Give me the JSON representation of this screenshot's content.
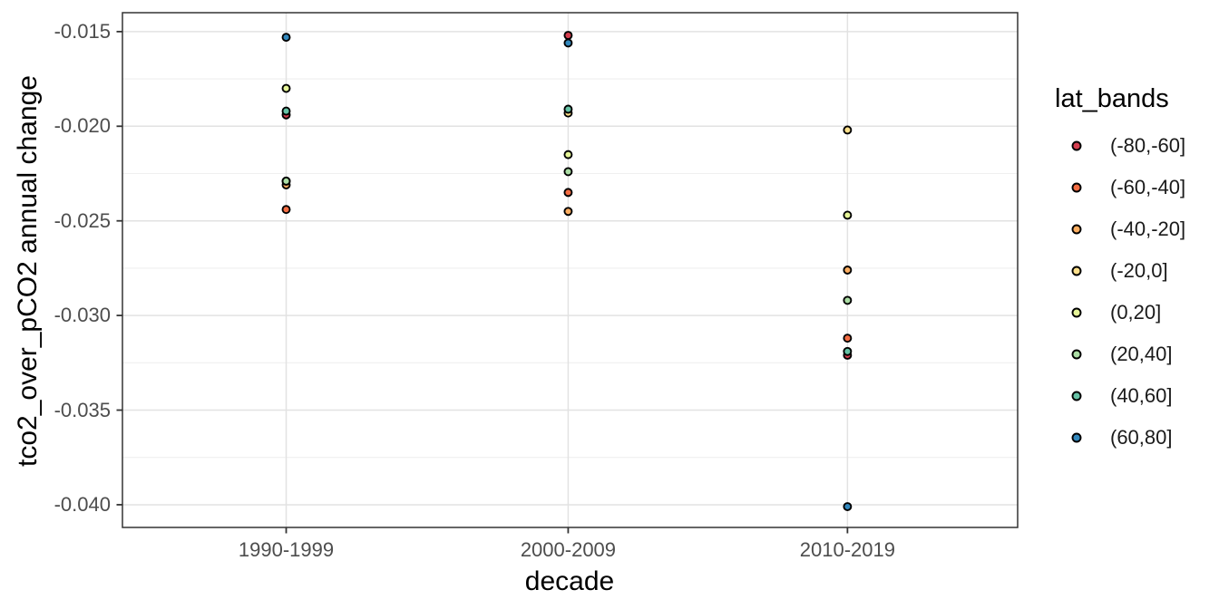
{
  "figure": {
    "background": "#ffffff",
    "panel_background": "#ffffff",
    "panel_border_color": "#333333",
    "grid_major_color": "#e2e2e2",
    "grid_minor_color": "#efefef",
    "tick_mark_color": "#333333",
    "tick_label_color": "#4d4d4d",
    "title_color": "#000000"
  },
  "chart_data": {
    "type": "scatter",
    "title": "",
    "xlabel": "decade",
    "ylabel": "tco2_over_pCO2 annual change",
    "categories": [
      "1990-1999",
      "2000-2009",
      "2010-2019"
    ],
    "ylim": [
      -0.0412,
      -0.014
    ],
    "y_ticks": [
      {
        "value": -0.015,
        "label": "-0.015"
      },
      {
        "value": -0.02,
        "label": "-0.020"
      },
      {
        "value": -0.025,
        "label": "-0.025"
      },
      {
        "value": -0.03,
        "label": "-0.030"
      },
      {
        "value": -0.035,
        "label": "-0.035"
      },
      {
        "value": -0.04,
        "label": "-0.040"
      }
    ],
    "y_minor_ticks": [
      -0.0175,
      -0.0225,
      -0.0275,
      -0.0325,
      -0.0375
    ],
    "grid": true,
    "legend_title": "lat_bands",
    "legend_position": "right",
    "point_style": {
      "shape": "circle-filled-outlined",
      "radius": 4.0,
      "stroke": "#000000",
      "stroke_width": 1.9
    },
    "series": [
      {
        "name": "(-80,-60]",
        "color": "#D53E4F",
        "values": [
          -0.0194,
          -0.0152,
          -0.0321
        ]
      },
      {
        "name": "(-60,-40]",
        "color": "#F46D43",
        "values": [
          -0.0244,
          -0.0235,
          -0.0312
        ]
      },
      {
        "name": "(-40,-20]",
        "color": "#FDAE61",
        "values": [
          -0.0231,
          -0.0245,
          -0.0276
        ]
      },
      {
        "name": "(-20,0]",
        "color": "#FEE08B",
        "values": [
          -0.0229,
          -0.0193,
          -0.0202
        ]
      },
      {
        "name": "(0,20]",
        "color": "#E6F598",
        "values": [
          -0.018,
          -0.0215,
          -0.0247
        ]
      },
      {
        "name": "(20,40]",
        "color": "#ABDDA4",
        "values": [
          -0.0229,
          -0.0224,
          -0.0292
        ]
      },
      {
        "name": "(40,60]",
        "color": "#66C2A5",
        "values": [
          -0.0192,
          -0.0191,
          -0.0319
        ]
      },
      {
        "name": "(60,80]",
        "color": "#3288BD",
        "values": [
          -0.0153,
          -0.0156,
          -0.0401
        ]
      }
    ]
  }
}
